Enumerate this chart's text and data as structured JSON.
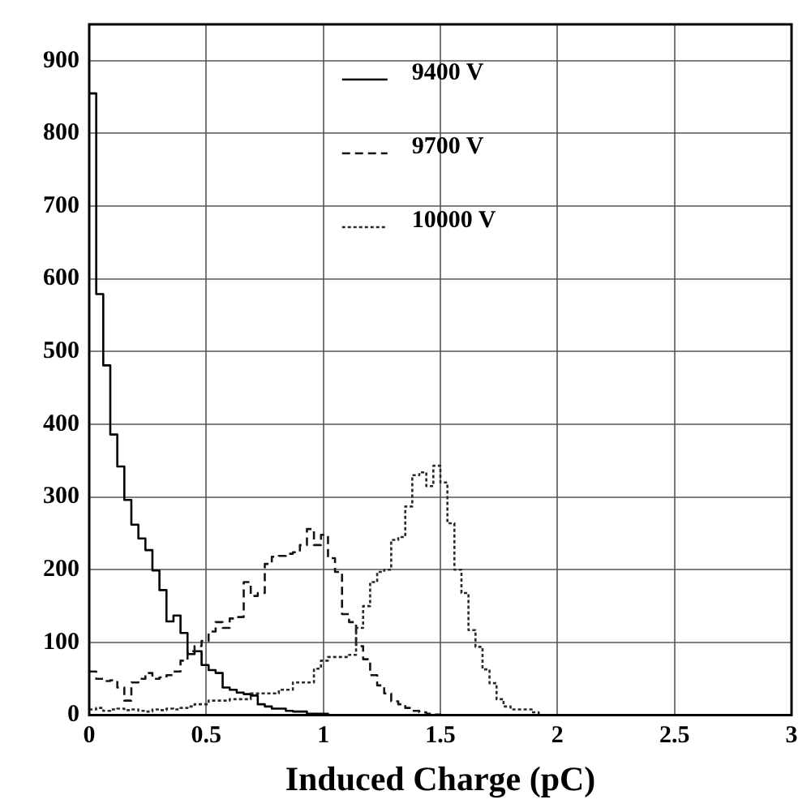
{
  "chart_data": {
    "type": "histogram",
    "xlabel": "Induced Charge (pC)",
    "bins": [
      0,
      0.03,
      0.06,
      0.09,
      0.12,
      0.15,
      0.18,
      0.21,
      0.24,
      0.27,
      0.3,
      0.33,
      0.36,
      0.39,
      0.42,
      0.45,
      0.48,
      0.51,
      0.54,
      0.57,
      0.6,
      0.63,
      0.66,
      0.69,
      0.72,
      0.75,
      0.78,
      0.81,
      0.84,
      0.87,
      0.9,
      0.93,
      0.96,
      0.99,
      1.02,
      1.05,
      1.08,
      1.11,
      1.14,
      1.17,
      1.2,
      1.23,
      1.26,
      1.29,
      1.32,
      1.35,
      1.38,
      1.41,
      1.44,
      1.47,
      1.5,
      1.53,
      1.56,
      1.59,
      1.62,
      1.65,
      1.68,
      1.71,
      1.74,
      1.77,
      1.8,
      1.83,
      1.86,
      1.89,
      1.92,
      1.95,
      1.98,
      2.01,
      2.04,
      2.07,
      2.1,
      2.13,
      2.16,
      2.19,
      2.22,
      2.25,
      2.28,
      2.31,
      2.34,
      2.37,
      2.4,
      2.43,
      2.46,
      2.49,
      2.52,
      2.55,
      2.58,
      2.61,
      2.64,
      2.67,
      2.7,
      2.73,
      2.76,
      2.79,
      2.82,
      2.85,
      2.88,
      2.91,
      2.94,
      2.97,
      3
    ],
    "series": [
      {
        "name": "9400 V",
        "color": "#000000",
        "line_style": "solid",
        "values": [
          855,
          579,
          481,
          386,
          342,
          296,
          262,
          243,
          227,
          199,
          172,
          129,
          137,
          113,
          84,
          88,
          69,
          62,
          58,
          38,
          35,
          31,
          29,
          27,
          15,
          12,
          9,
          9,
          6,
          5,
          5,
          2,
          2,
          2,
          0,
          0,
          0,
          0,
          0,
          0,
          0,
          0,
          0,
          0,
          0,
          0,
          0,
          0,
          0,
          0,
          0,
          0,
          0,
          0,
          0,
          0,
          0,
          0,
          0,
          0,
          0,
          0,
          0,
          0,
          0,
          0,
          0,
          0,
          0,
          0,
          0,
          0,
          0,
          0,
          0,
          0,
          0,
          0,
          0,
          0,
          0,
          0,
          0,
          0,
          0,
          0,
          0,
          0,
          0,
          0,
          0,
          0,
          0,
          0,
          0,
          0,
          0,
          0,
          0,
          0
        ]
      },
      {
        "name": "9700 V",
        "color": "#141414",
        "line_style": "dashed",
        "values": [
          60,
          50,
          47,
          48,
          38,
          20,
          45,
          50,
          58,
          50,
          52,
          55,
          60,
          75,
          88,
          95,
          102,
          115,
          128,
          120,
          133,
          135,
          183,
          164,
          168,
          208,
          218,
          219,
          222,
          224,
          234,
          256,
          234,
          248,
          216,
          197,
          139,
          128,
          95,
          77,
          55,
          41,
          30,
          19,
          15,
          10,
          6,
          4,
          2,
          1,
          0,
          0,
          0,
          0,
          0,
          0,
          0,
          0,
          0,
          0,
          0,
          0,
          0,
          0,
          0,
          0,
          0,
          0,
          0,
          0,
          0,
          0,
          0,
          0,
          0,
          0,
          0,
          0,
          0,
          0,
          0,
          0,
          0,
          0,
          0,
          0,
          0,
          0,
          0,
          0,
          0,
          0,
          0,
          0,
          0,
          0,
          0,
          0,
          0,
          0
        ]
      },
      {
        "name": "10000 V",
        "color": "#2a2a2a",
        "line_style": "dotted",
        "values": [
          8,
          10,
          6,
          8,
          9,
          7,
          8,
          6,
          5,
          8,
          7,
          9,
          8,
          10,
          12,
          15,
          15,
          20,
          20,
          20,
          22,
          22,
          22,
          30,
          30,
          30,
          30,
          35,
          35,
          45,
          45,
          45,
          64,
          75,
          80,
          80,
          80,
          83,
          120,
          150,
          183,
          197,
          200,
          241,
          245,
          287,
          330,
          334,
          315,
          343,
          320,
          264,
          200,
          168,
          117,
          94,
          63,
          44,
          22,
          12,
          8,
          8,
          8,
          4,
          0,
          0,
          0,
          0,
          0,
          0,
          0,
          0,
          0,
          0,
          0,
          0,
          0,
          0,
          0,
          0,
          0,
          0,
          0,
          0,
          0,
          0,
          0,
          0,
          0,
          0,
          0,
          0,
          0,
          0,
          0,
          0,
          0,
          0,
          0,
          0
        ]
      }
    ],
    "xlim": [
      0,
      3
    ],
    "xticks": [
      0,
      0.5,
      1,
      1.5,
      2,
      2.5,
      3
    ],
    "ylim": [
      0,
      950
    ],
    "yticks": [
      0,
      100,
      200,
      300,
      400,
      500,
      600,
      700,
      800,
      900
    ],
    "grid": true,
    "legend": "top"
  }
}
